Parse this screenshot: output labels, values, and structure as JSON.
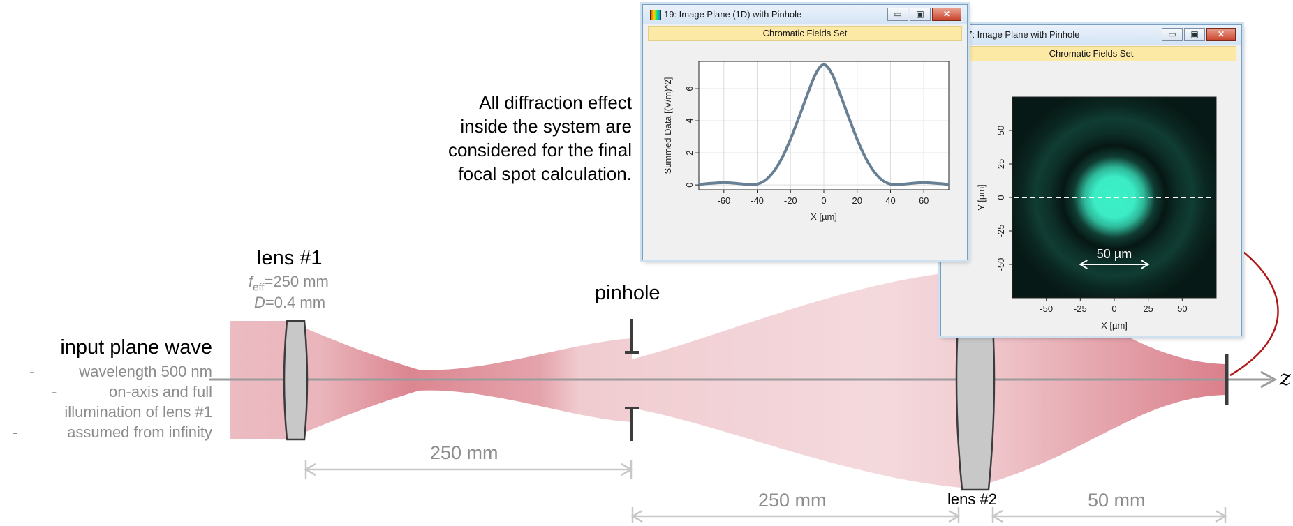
{
  "annotation": {
    "lines": [
      "All diffraction effect",
      "inside the system are",
      "considered for the final",
      "focal spot calculation."
    ]
  },
  "input": {
    "title": "input plane wave",
    "items": [
      {
        "dash": "-",
        "text": "wavelength 500 nm"
      },
      {
        "dash": "-",
        "text": "on-axis and full"
      },
      {
        "dash": "",
        "text": "illumination of lens #1"
      },
      {
        "dash": "-",
        "text": "assumed from infinity"
      }
    ]
  },
  "lens1": {
    "title": "lens #1",
    "f_symbol": "f",
    "f_sub": "eff",
    "f_value": "=250 mm",
    "d_symbol": "D",
    "d_value": "=0.4 mm"
  },
  "pinhole": {
    "title": "pinhole"
  },
  "lens2": {
    "title": "lens #2"
  },
  "axis": {
    "label": "z"
  },
  "distances": {
    "d1": "250 mm",
    "d2": "250 mm",
    "d3": "50 mm"
  },
  "colors": {
    "beam": "#d87884",
    "element": "#c8c8c8",
    "stop": "#3c3c3c",
    "dimension": "#c8c8c8",
    "arrow": "#b01818",
    "curve": "#687f94",
    "spot": "#3cf0c8",
    "map_background": "#05100e"
  },
  "window_1d": {
    "title": "19: Image Plane (1D) with Pinhole",
    "subtitle": "Chromatic Fields Set",
    "ylabel": "Summed Data [(V/m)^2]",
    "xlabel": "X [µm]",
    "buttons": {
      "minimize": "▭",
      "maximize": "▣",
      "close": "✕"
    }
  },
  "window_2d": {
    "title": "17: Image Plane with Pinhole",
    "subtitle": "Chromatic Fields Set",
    "ylabel": "Y [µm]",
    "xlabel": "X [µm]",
    "scale_label": "50 µm",
    "buttons": {
      "minimize": "▭",
      "maximize": "▣",
      "close": "✕"
    }
  },
  "chart_data": [
    {
      "type": "line",
      "title": "",
      "xlabel": "X [µm]",
      "ylabel": "Summed Data [(V/m)^2]",
      "xlim": [
        -75,
        75
      ],
      "ylim": [
        -0.3,
        7.7
      ],
      "xticks": [
        -60,
        -40,
        -20,
        0,
        20,
        40,
        60
      ],
      "yticks": [
        0,
        2,
        4,
        6
      ],
      "grid": true,
      "series": [
        {
          "x": [
            -75,
            -70,
            -65,
            -60,
            -55,
            -50,
            -45,
            -40,
            -35,
            -30,
            -25,
            -20,
            -15,
            -10,
            -5,
            0,
            5,
            10,
            15,
            20,
            25,
            30,
            35,
            40,
            45,
            50,
            55,
            60,
            65,
            70,
            75
          ],
          "values": [
            0.03,
            0.08,
            0.12,
            0.14,
            0.12,
            0.07,
            0.02,
            0.05,
            0.3,
            0.85,
            1.7,
            2.85,
            4.2,
            5.6,
            6.9,
            7.5,
            6.9,
            5.6,
            4.2,
            2.85,
            1.7,
            0.85,
            0.3,
            0.05,
            0.02,
            0.07,
            0.12,
            0.14,
            0.12,
            0.08,
            0.03
          ]
        }
      ]
    },
    {
      "type": "heatmap",
      "title": "",
      "xlabel": "X [µm]",
      "ylabel": "Y [µm]",
      "xlim": [
        -75,
        75
      ],
      "ylim": [
        -75,
        75
      ],
      "xticks": [
        -50,
        -25,
        0,
        25,
        50
      ],
      "yticks": [
        50,
        25,
        0,
        -25,
        -50
      ],
      "profile_radius": [
        0,
        15,
        22,
        30,
        38,
        48,
        58,
        68,
        80
      ],
      "profile_intensity": [
        1.0,
        0.98,
        0.75,
        0.2,
        0.03,
        0.14,
        0.2,
        0.1,
        0.04
      ],
      "cut_line_y": 0,
      "scale_bar": {
        "from": -25,
        "to": 25
      }
    }
  ]
}
